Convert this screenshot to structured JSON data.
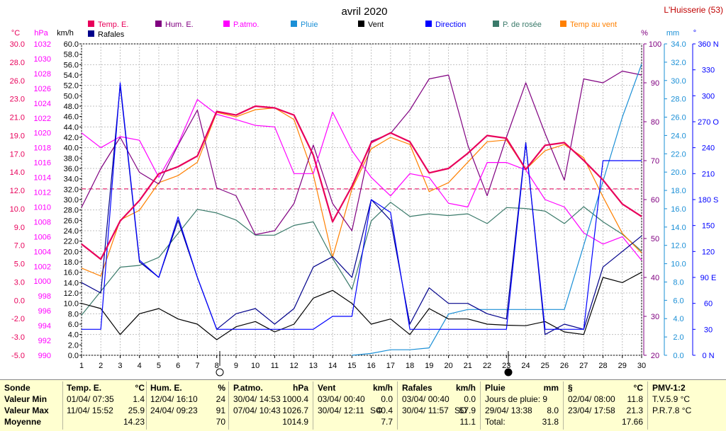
{
  "header": {
    "title": "avril 2020",
    "station": "L'Huisserie (53)"
  },
  "legend": [
    {
      "label": "Temp. E.",
      "color": "#e8005a"
    },
    {
      "label": "Hum. E.",
      "color": "#800080"
    },
    {
      "label": "P.atmo.",
      "color": "#ff00ff"
    },
    {
      "label": "Pluie",
      "color": "#1a8fd6"
    },
    {
      "label": "Vent",
      "color": "#000000"
    },
    {
      "label": "Direction",
      "color": "#0000ff"
    },
    {
      "label": "P. de rosée",
      "color": "#3a7a6a"
    },
    {
      "label": "Temp au vent",
      "color": "#ff8000"
    },
    {
      "label": "Rafales",
      "color": "#00008b"
    }
  ],
  "axes": {
    "temp": {
      "unit": "°C",
      "ticks": [
        "30.0",
        "28.0",
        "26.0",
        "23.0",
        "21.0",
        "19.0",
        "17.0",
        "14.0",
        "12.0",
        "10.0",
        "9.0",
        "7.0",
        "5.0",
        "3.0",
        "0.0",
        "-2.0",
        "-3.0",
        "-5.0"
      ],
      "min": -5,
      "max": 30
    },
    "press": {
      "unit": "hPa",
      "ticks": [
        "1032",
        "1030",
        "1028",
        "1026",
        "1024",
        "1022",
        "1020",
        "1018",
        "1016",
        "1014",
        "1012",
        "1010",
        "1008",
        "1006",
        "1004",
        "1002",
        "1000",
        "998",
        "996",
        "994",
        "992",
        "990"
      ],
      "min": 990,
      "max": 1032
    },
    "wind": {
      "unit": "km/h",
      "min": 0,
      "max": 60,
      "step": 2
    },
    "hum": {
      "unit": "%",
      "ticks": [
        "100",
        "90",
        "80",
        "70",
        "60",
        "50",
        "40",
        "30",
        "20"
      ],
      "min": 20,
      "max": 100
    },
    "rain": {
      "unit": "mm",
      "min": 0,
      "max": 34,
      "step": 2
    },
    "dir": {
      "unit": "°",
      "ticks": [
        "360 N",
        "330",
        "300",
        "270 O",
        "240",
        "210",
        "180 S",
        "150",
        "120",
        "90 E",
        "60",
        "30",
        "0 N"
      ],
      "min": 0,
      "max": 360
    },
    "days": [
      "1",
      "2",
      "3",
      "4",
      "5",
      "6",
      "7",
      "8",
      "9",
      "10",
      "11",
      "12",
      "13",
      "14",
      "15",
      "16",
      "17",
      "18",
      "19",
      "20",
      "21",
      "22",
      "23",
      "24",
      "25",
      "26",
      "27",
      "28",
      "29",
      "30"
    ]
  },
  "chart_data": {
    "type": "line",
    "title": "avril 2020",
    "x": [
      1,
      2,
      3,
      4,
      5,
      6,
      7,
      8,
      9,
      10,
      11,
      12,
      13,
      14,
      15,
      16,
      17,
      18,
      19,
      20,
      21,
      22,
      23,
      24,
      25,
      26,
      27,
      28,
      29,
      30
    ],
    "reference_line": {
      "axis": "temp",
      "value": 13.7
    },
    "series": [
      {
        "name": "Temp. E.",
        "axis": "temp",
        "values": [
          7.5,
          5.8,
          10.1,
          12.4,
          15.4,
          16.2,
          17.4,
          22.4,
          22.0,
          23.0,
          22.8,
          22.0,
          17.5,
          10.0,
          14.0,
          18.9,
          20.0,
          19.0,
          15.5,
          16.0,
          17.7,
          19.7,
          19.4,
          15.9,
          18.6,
          18.9,
          16.9,
          14.7,
          12.0,
          10.6
        ],
        "color": "#e8005a"
      },
      {
        "name": "Hum. E.",
        "axis": "hum",
        "values": [
          58,
          68,
          76,
          67,
          64,
          74,
          83,
          63,
          61,
          51,
          52,
          59,
          74,
          59,
          52,
          75,
          77,
          83,
          91,
          92,
          74,
          61,
          76,
          90,
          77,
          65,
          91,
          90,
          93,
          92
        ],
        "color": "#800080"
      },
      {
        "name": "P.atmo.",
        "axis": "press",
        "values": [
          1020,
          1018,
          1019.5,
          1019,
          1014,
          1018.5,
          1024.5,
          1022.5,
          1021.8,
          1021,
          1020.8,
          1014.5,
          1014.5,
          1022.8,
          1017.6,
          1014,
          1011.5,
          1014.5,
          1014,
          1010.5,
          1010,
          1016,
          1016,
          1015,
          1011,
          1010,
          1006.5,
          1005,
          1006,
          1002.8
        ],
        "color": "#ff00ff"
      },
      {
        "name": "Pluie",
        "axis": "rain",
        "values": [
          null,
          null,
          null,
          null,
          null,
          null,
          null,
          null,
          null,
          null,
          null,
          null,
          null,
          null,
          0,
          0.2,
          0.6,
          0.6,
          0.8,
          4.5,
          5.0,
          5.0,
          5.0,
          5.0,
          5.0,
          5.0,
          12.0,
          19.0,
          26.0,
          31.8
        ],
        "color": "#1a8fd6"
      },
      {
        "name": "Vent",
        "axis": "wind",
        "values": [
          10,
          9,
          4,
          8,
          9,
          7,
          6,
          3,
          5.5,
          6.5,
          4.5,
          6,
          11,
          12.5,
          10,
          6,
          7,
          4,
          9,
          7,
          7,
          6,
          5.8,
          5.7,
          6.5,
          4.5,
          4,
          15,
          14,
          16
        ],
        "color": "#000000"
      },
      {
        "name": "Direction",
        "axis": "dir",
        "values": [
          30,
          30,
          315,
          110,
          90,
          160,
          90,
          30,
          30,
          30,
          30,
          30,
          30,
          45,
          45,
          180,
          165,
          30,
          30,
          30,
          30,
          30,
          30,
          245,
          30,
          30,
          30,
          225,
          225,
          225
        ],
        "color": "#0000ff"
      },
      {
        "name": "P. de rosée",
        "axis": "temp",
        "values": [
          -0.5,
          2.2,
          4.9,
          5.1,
          6.0,
          8.7,
          11.4,
          11.0,
          10.2,
          8.5,
          8.5,
          9.6,
          10.0,
          5.9,
          2.4,
          10.1,
          12.2,
          10.6,
          10.9,
          10.7,
          10.9,
          9.8,
          11.6,
          11.5,
          11.2,
          9.8,
          11.7,
          10.0,
          8.6,
          6.7
        ],
        "color": "#3a7a6a"
      },
      {
        "name": "Temp au vent",
        "axis": "temp",
        "values": [
          4.8,
          3.9,
          10.2,
          11.3,
          14.4,
          15.2,
          16.7,
          22.3,
          21.8,
          22.6,
          22.8,
          21.5,
          15.3,
          6.0,
          13.7,
          18.2,
          19.5,
          18.7,
          13.4,
          14.4,
          16.7,
          19.0,
          19.2,
          15.9,
          18.0,
          18.7,
          17.2,
          12.8,
          8.7,
          6.5
        ],
        "color": "#ff8000"
      },
      {
        "name": "Rafales",
        "axis": "wind",
        "values": [
          14,
          12,
          52,
          18,
          15,
          26,
          15,
          5,
          8,
          9,
          6,
          9,
          17,
          19,
          15,
          30,
          26,
          6,
          13,
          10,
          10,
          8,
          7,
          41,
          4,
          6,
          5,
          17,
          20,
          23
        ],
        "color": "#00008b"
      }
    ]
  },
  "stats": {
    "sonde": {
      "header": "Sonde",
      "min": "Valeur Min",
      "max": "Valeur Max",
      "avg": "Moyenne"
    },
    "temp": {
      "label": "Temp. E.",
      "unit": "°C",
      "min_date": "01/04/ 07:35",
      "min_val": "1.4",
      "max_date": "11/04/ 15:52",
      "max_val": "25.9",
      "avg": "14.23"
    },
    "hum": {
      "label": "Hum. E.",
      "unit": "%",
      "min_date": "12/04/ 16:10",
      "min_val": "24",
      "max_date": "24/04/ 09:23",
      "max_val": "91",
      "avg": "70"
    },
    "press": {
      "label": "P.atmo.",
      "unit": "hPa",
      "min_date": "30/04/ 14:53",
      "min_val": "1000.4",
      "max_date": "07/04/ 10:43",
      "max_val": "1026.7",
      "avg": "1014.9"
    },
    "wind": {
      "label": "Vent",
      "unit": "km/h",
      "min_date": "03/04/ 00:40",
      "min_val": "0.0",
      "max_date": "30/04/ 12:11",
      "max_dir": "SO",
      "max_val": "40.4",
      "avg": "7.7"
    },
    "gust": {
      "label": "Rafales",
      "unit": "km/h",
      "min_date": "03/04/ 00:40",
      "min_val": "0.0",
      "max_date": "30/04/ 11:57",
      "max_dir": "SO",
      "max_val": "57.9",
      "avg": "11.1"
    },
    "rain": {
      "label": "Pluie",
      "unit": "mm",
      "line1": "Jours de pluie: 9",
      "line2_date": "29/04/ 13:38",
      "line2_val": "8.0",
      "total_label": "Total:",
      "total_val": "31.8"
    },
    "dew": {
      "label": "§",
      "unit": "°C",
      "min_date": "02/04/ 08:00",
      "min_val": "11.8",
      "max_date": "23/04/ 17:58",
      "max_val": "21.3",
      "avg": "17.66"
    },
    "pmv": {
      "label": "PMV-1:2",
      "line1": "T.V.5.9 °C",
      "line2": "P.R.7.8 °C"
    }
  }
}
